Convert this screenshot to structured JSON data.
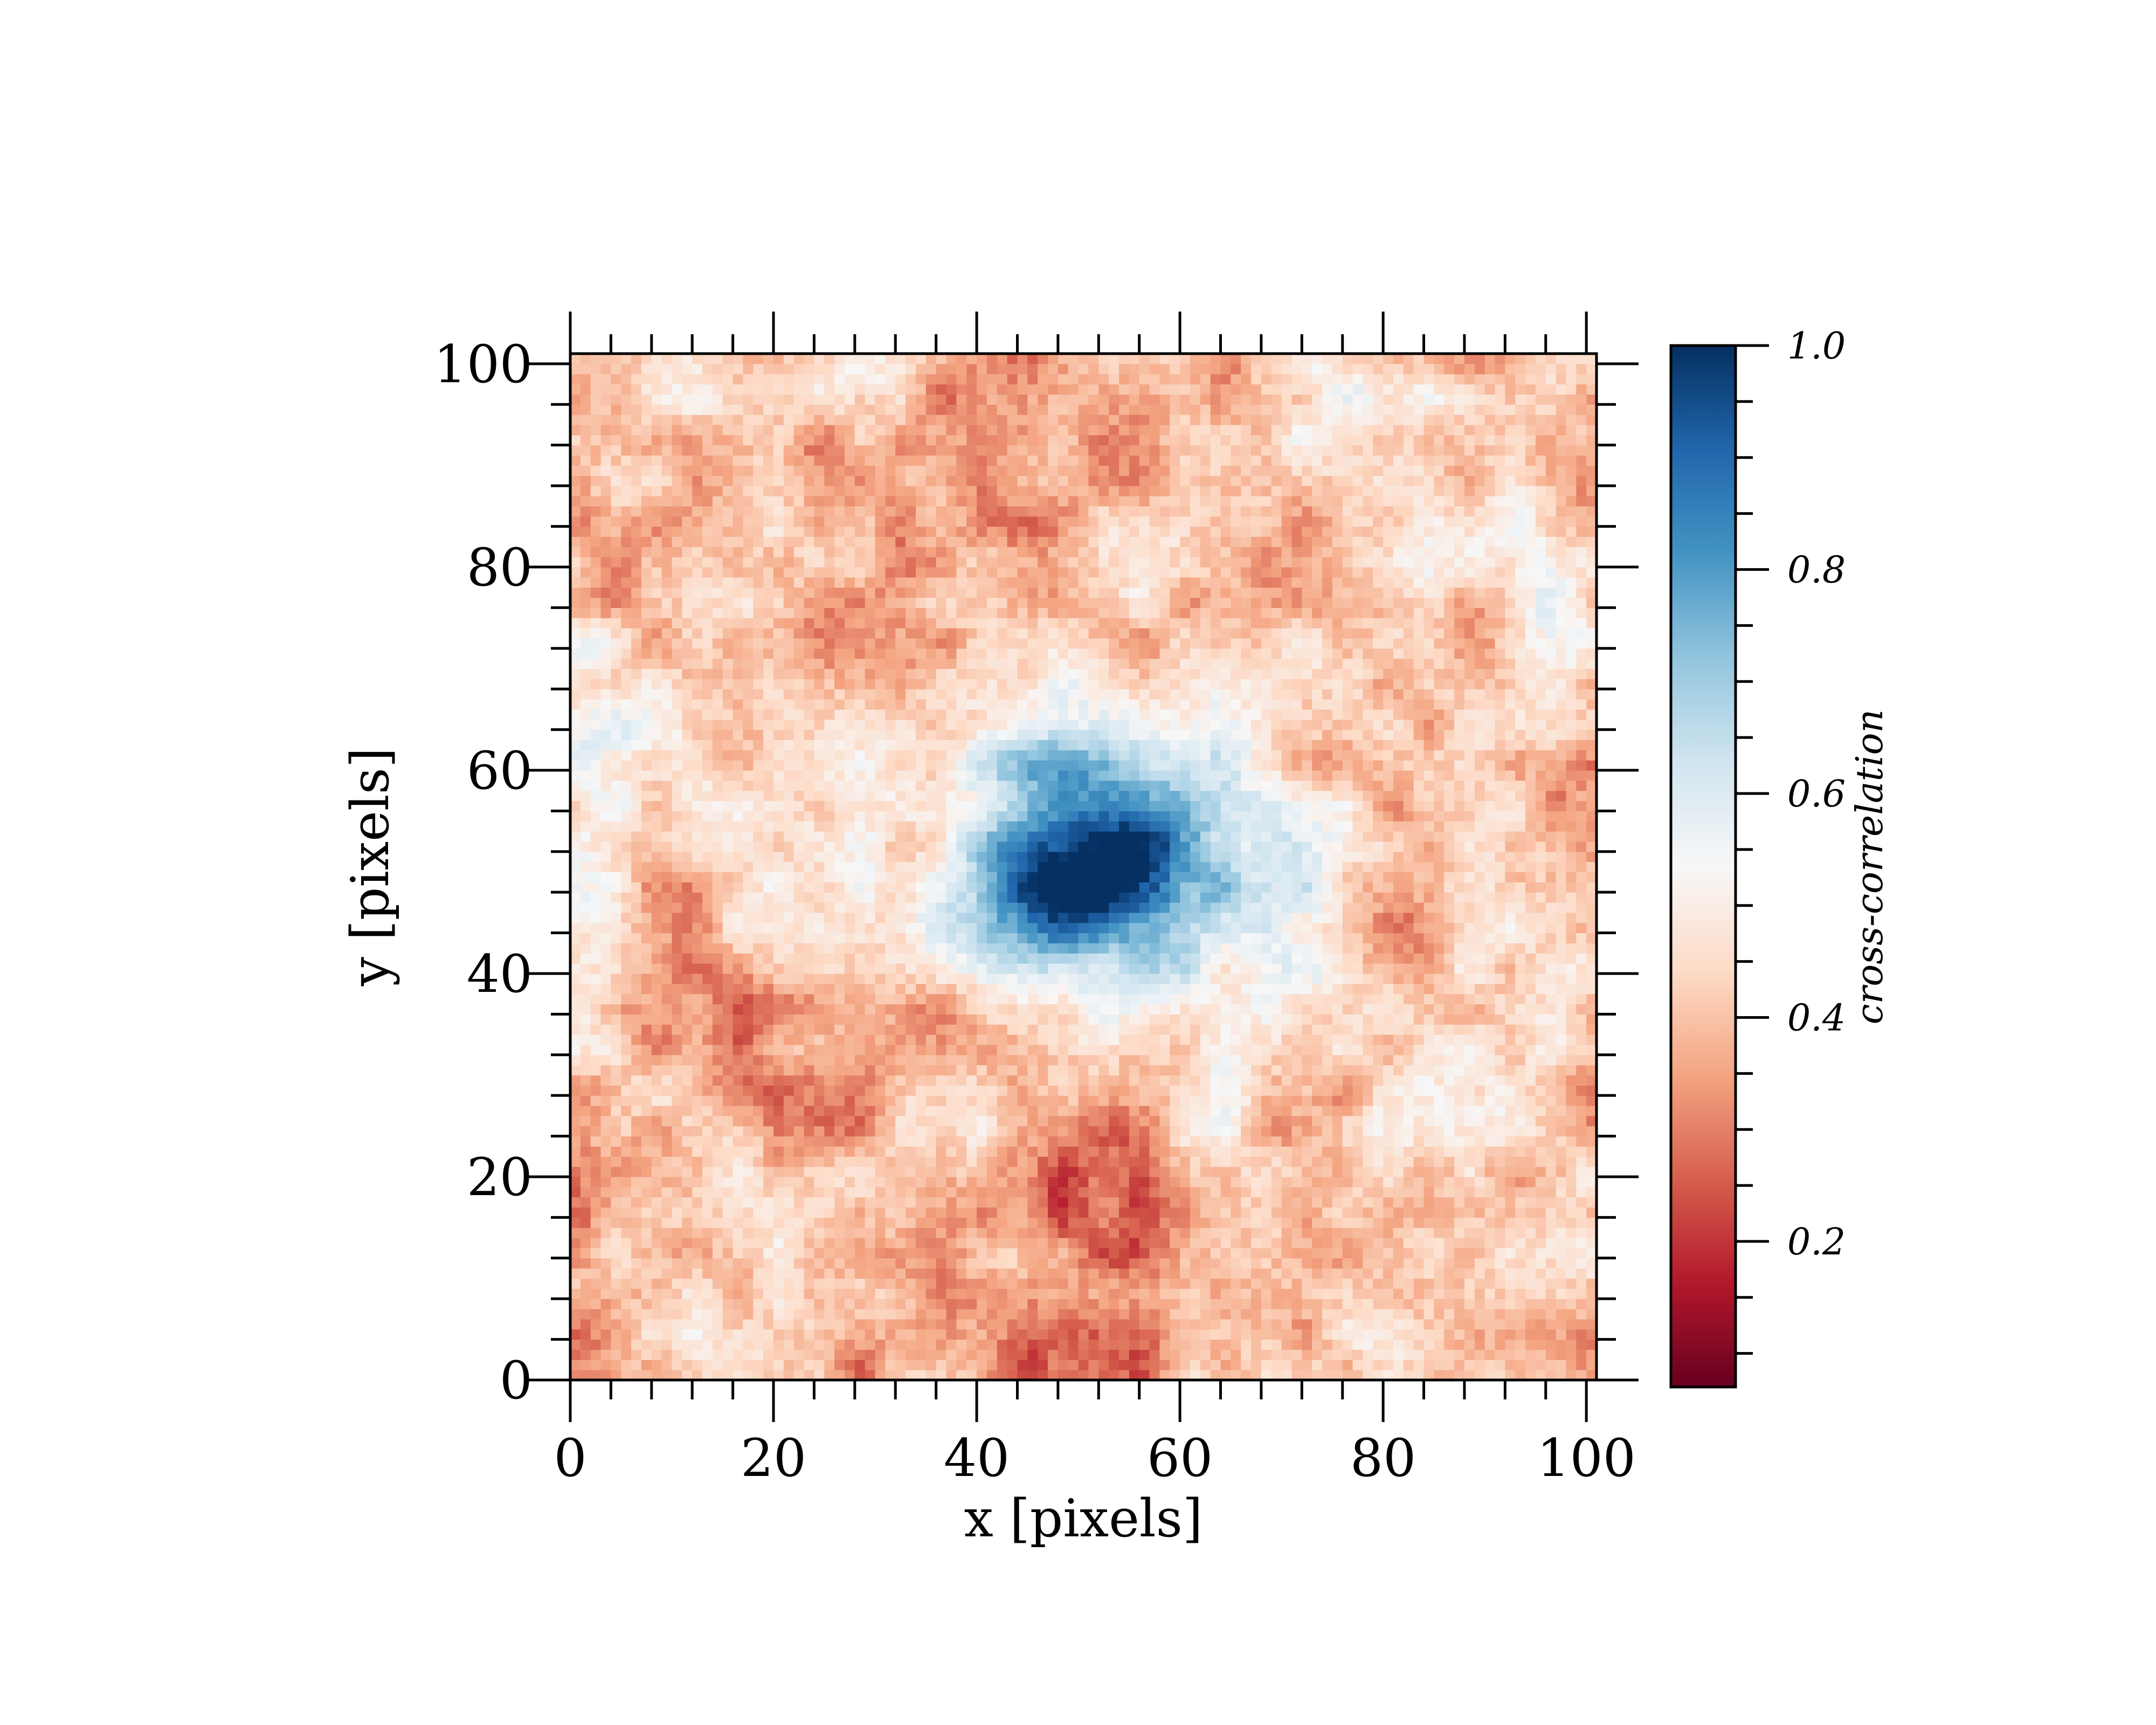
{
  "chart_data": {
    "type": "heatmap",
    "title": "",
    "xlabel": "x [pixels]",
    "ylabel": "y [pixels]",
    "xlim": [
      0,
      101
    ],
    "ylim": [
      0,
      101
    ],
    "x_ticks": [
      0,
      20,
      40,
      60,
      80,
      100
    ],
    "y_ticks": [
      0,
      20,
      40,
      60,
      80,
      100
    ],
    "grid_size": 101,
    "colorbar": {
      "label": "cross-correlation",
      "range": [
        0.07,
        1.0
      ],
      "ticks": [
        0.2,
        0.4,
        0.6,
        0.8,
        1.0
      ],
      "tick_labels": [
        "0.2",
        "0.4",
        "0.6",
        "0.8",
        "1.0"
      ],
      "colormap": "RdBu",
      "colors": [
        "#67001f",
        "#b2182b",
        "#d6604d",
        "#f4a582",
        "#fddbc7",
        "#f7f7f7",
        "#d1e5f0",
        "#92c5de",
        "#4393c3",
        "#2166ac",
        "#053061"
      ]
    },
    "regions": [
      {
        "description": "central blue peak",
        "x": [
          38,
          64
        ],
        "y": [
          40,
          64
        ],
        "peak_value": 1.0,
        "peak_at": [
          50,
          50
        ]
      },
      {
        "description": "low-correlation band",
        "x": [
          35,
          65
        ],
        "y": [
          0,
          18
        ],
        "value": 0.12
      }
    ],
    "value_range": [
      0.07,
      1.0
    ]
  },
  "tick_labels": {
    "x": [
      "0",
      "20",
      "40",
      "60",
      "80",
      "100"
    ],
    "y": [
      "0",
      "20",
      "40",
      "60",
      "80",
      "100"
    ]
  }
}
